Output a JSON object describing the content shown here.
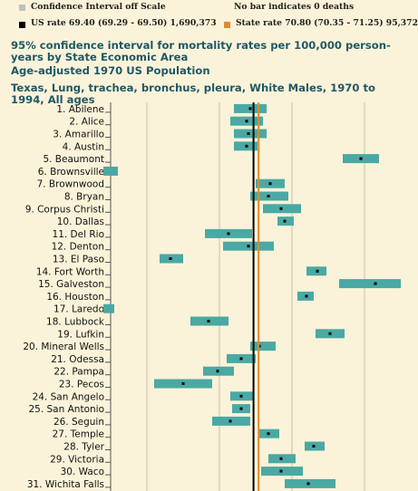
{
  "legend": {
    "off_scale": "Confidence Interval off Scale",
    "no_bar": "No bar indicates 0 deaths",
    "us_rate": "US rate 69.40 (69.29 - 69.50) 1,690,373",
    "state_rate": "State rate 70.80 (70.35 - 71.25) 95,372"
  },
  "title": {
    "line1": "95% confidence interval for mortality rates per 100,000 person-years by State Economic Area",
    "line2": "Age-adjusted 1970 US Population",
    "line3": "Texas, Lung, trachea, bronchus, pleura, White Males, 1970 to 1994, All ages"
  },
  "colors": {
    "bar": "#4aa9a4",
    "us_line": "#000000",
    "state_line": "#e08a2c",
    "off_scale_box": "#c0c0c0",
    "title_text": "#1f5866",
    "background": "#fbf3d9"
  },
  "chart_data": {
    "type": "bar",
    "orientation": "horizontal",
    "description_kind": "confidence-interval",
    "x_range": [
      30,
      110
    ],
    "us_rate": 69.4,
    "state_rate": 70.8,
    "grid": true,
    "series": [
      {
        "label": "1. Abilene",
        "low": 64,
        "high": 73,
        "rate": 68.5
      },
      {
        "label": "2. Alice",
        "low": 63,
        "high": 72,
        "rate": 67.5
      },
      {
        "label": "3. Amarillo",
        "low": 64,
        "high": 73,
        "rate": 68
      },
      {
        "label": "4. Austin",
        "low": 64,
        "high": 70.5,
        "rate": 67.5
      },
      {
        "label": "5. Beaumont",
        "low": 94,
        "high": 104,
        "rate": 99
      },
      {
        "label": "6. Brownsville",
        "low": 28,
        "high": 32,
        "rate": null
      },
      {
        "label": "7. Brownwood",
        "low": 70,
        "high": 78,
        "rate": 74
      },
      {
        "label": "8. Bryan",
        "low": 68.5,
        "high": 79,
        "rate": 73.5
      },
      {
        "label": "9. Corpus Christi",
        "low": 72,
        "high": 82.5,
        "rate": 77
      },
      {
        "label": "10. Dallas",
        "low": 76,
        "high": 80.5,
        "rate": 78
      },
      {
        "label": "11. Del Rio",
        "low": 56,
        "high": 69,
        "rate": 62.5
      },
      {
        "label": "12. Denton",
        "low": 61,
        "high": 75,
        "rate": 68
      },
      {
        "label": "13. El Paso",
        "low": 43.5,
        "high": 50,
        "rate": 46.5
      },
      {
        "label": "14. Fort Worth",
        "low": 84,
        "high": 89.5,
        "rate": 87
      },
      {
        "label": "15. Galveston",
        "low": 93,
        "high": 113,
        "rate": 103
      },
      {
        "label": "16. Houston",
        "low": 81.5,
        "high": 86,
        "rate": 84
      },
      {
        "label": "17. Laredo",
        "low": 28,
        "high": 31,
        "rate": null
      },
      {
        "label": "18. Lubbock",
        "low": 52,
        "high": 62.5,
        "rate": 57
      },
      {
        "label": "19. Lufkin",
        "low": 86.5,
        "high": 94.5,
        "rate": 90.5
      },
      {
        "label": "20. Mineral Wells",
        "low": 68.5,
        "high": 75.5,
        "rate": 71
      },
      {
        "label": "21. Odessa",
        "low": 62,
        "high": 70,
        "rate": 66
      },
      {
        "label": "22. Pampa",
        "low": 55.5,
        "high": 64,
        "rate": 59.5
      },
      {
        "label": "23. Pecos",
        "low": 42,
        "high": 58,
        "rate": 50
      },
      {
        "label": "24. San Angelo",
        "low": 63,
        "high": 69.5,
        "rate": 66
      },
      {
        "label": "25. San Antonio",
        "low": 63.5,
        "high": 68.5,
        "rate": 66
      },
      {
        "label": "26. Seguin",
        "low": 58,
        "high": 68.5,
        "rate": 63
      },
      {
        "label": "27. Temple",
        "low": 71,
        "high": 76.5,
        "rate": 73.5
      },
      {
        "label": "28. Tyler",
        "low": 83.5,
        "high": 89,
        "rate": 86
      },
      {
        "label": "29. Victoria",
        "low": 73.5,
        "high": 81,
        "rate": 77
      },
      {
        "label": "30. Waco",
        "low": 71.5,
        "high": 83,
        "rate": 77
      },
      {
        "label": "31. Wichita Falls",
        "low": 78,
        "high": 92,
        "rate": 84.5
      }
    ]
  }
}
